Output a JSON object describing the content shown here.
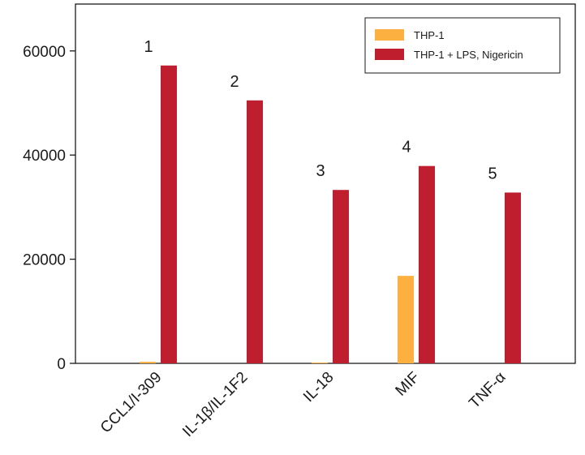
{
  "chart_data": {
    "type": "bar",
    "categories": [
      "CCL1/I-309",
      "IL-1β/IL-1F2",
      "IL-18",
      "MIF",
      "TNF-α"
    ],
    "series": [
      {
        "name": "THP-1",
        "color": "#FBB040",
        "values": [
          300,
          0,
          150,
          16800,
          0
        ]
      },
      {
        "name": "THP-1 + LPS, Nigericin",
        "color": "#BE1E2D",
        "values": [
          57200,
          50500,
          33300,
          37900,
          32800
        ]
      }
    ],
    "annotations": [
      "1",
      "2",
      "3",
      "4",
      "5"
    ],
    "yticks": [
      0,
      20000,
      40000,
      60000
    ],
    "ylim": [
      0,
      69000
    ],
    "legend_position": "top-right",
    "grid": false
  }
}
